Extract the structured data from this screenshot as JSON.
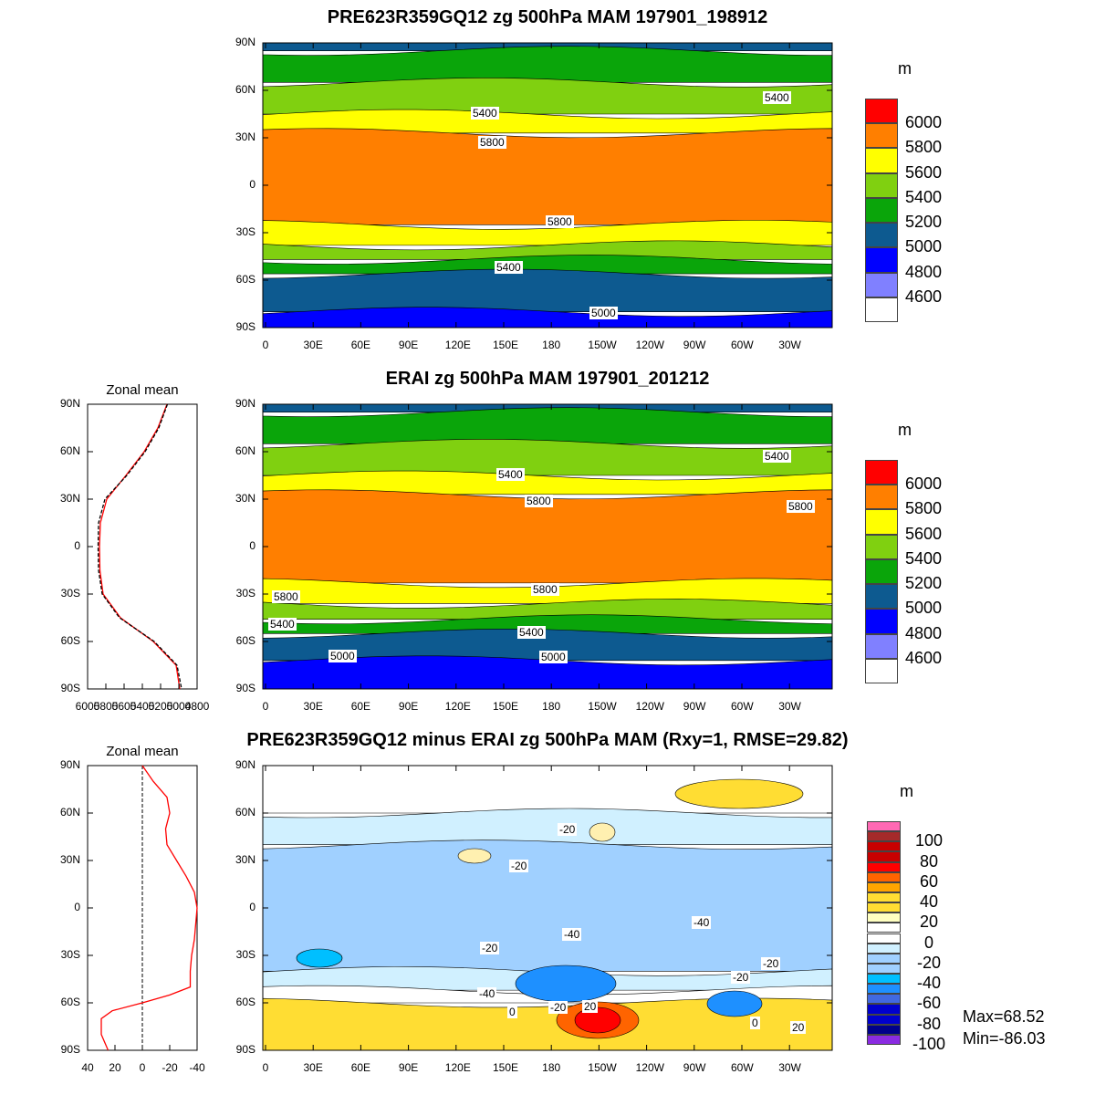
{
  "panels": [
    {
      "title": "PRE623R359GQ12 zg 500hPa MAM 197901_198912",
      "unit": "m",
      "colorbar": {
        "labels": [
          "6000",
          "5800",
          "5600",
          "5400",
          "5200",
          "5000",
          "4800",
          "4600"
        ],
        "colors": [
          "#ff0000",
          "#ff7f00",
          "#ffff00",
          "#80d010",
          "#0aa50a",
          "#0d5a90",
          "#0000ff",
          "#8080ff",
          "#ffffff"
        ]
      },
      "contour_labels": [
        "5400",
        "5400",
        "5800",
        "5800",
        "5400",
        "5000"
      ],
      "bands": [
        [
          90,
          85,
          "#0d5a90"
        ],
        [
          85,
          65,
          "#0aa50a"
        ],
        [
          65,
          45,
          "#80d010"
        ],
        [
          45,
          33,
          "#ffff00"
        ],
        [
          33,
          -25,
          "#ff7f00"
        ],
        [
          -25,
          -38,
          "#ffff00"
        ],
        [
          -38,
          -47,
          "#80d010"
        ],
        [
          -47,
          -56,
          "#0aa50a"
        ],
        [
          -56,
          -80,
          "#0d5a90"
        ],
        [
          -80,
          -90,
          "#0000ff"
        ]
      ]
    },
    {
      "title": "ERAI zg 500hPa MAM 197901_201212",
      "unit": "m",
      "colorbar": {
        "labels": [
          "6000",
          "5800",
          "5600",
          "5400",
          "5200",
          "5000",
          "4800",
          "4600"
        ],
        "colors": [
          "#ff0000",
          "#ff7f00",
          "#ffff00",
          "#80d010",
          "#0aa50a",
          "#0d5a90",
          "#0000ff",
          "#8080ff",
          "#ffffff"
        ]
      },
      "contour_labels": [
        "5400",
        "5400",
        "5800",
        "5800",
        "5800",
        "5800",
        "5400",
        "5400",
        "5000",
        "5000"
      ],
      "bands": [
        [
          90,
          85,
          "#0d5a90"
        ],
        [
          85,
          65,
          "#0aa50a"
        ],
        [
          65,
          45,
          "#80d010"
        ],
        [
          45,
          33,
          "#ffff00"
        ],
        [
          33,
          -23,
          "#ff7f00"
        ],
        [
          -23,
          -36,
          "#ffff00"
        ],
        [
          -36,
          -46,
          "#80d010"
        ],
        [
          -46,
          -55,
          "#0aa50a"
        ],
        [
          -55,
          -72,
          "#0d5a90"
        ],
        [
          -72,
          -90,
          "#0000ff"
        ]
      ],
      "zonal_mean": {
        "title": "Zonal mean",
        "xticks": [
          "6000",
          "5800",
          "5600",
          "5400",
          "5200",
          "5000",
          "4800"
        ],
        "lat": [
          90,
          75,
          60,
          45,
          30,
          15,
          0,
          -15,
          -30,
          -45,
          -60,
          -75,
          -90
        ],
        "model": [
          5130,
          5230,
          5380,
          5580,
          5790,
          5860,
          5870,
          5865,
          5830,
          5640,
          5280,
          5030,
          4990
        ],
        "obs": [
          5125,
          5220,
          5370,
          5570,
          5810,
          5880,
          5885,
          5880,
          5840,
          5650,
          5270,
          5020,
          4970
        ]
      }
    },
    {
      "title": "PRE623R359GQ12 minus ERAI zg 500hPa MAM (Rxy=1, RMSE=29.82)",
      "unit": "m",
      "colorbar": {
        "labels": [
          "100",
          "80",
          "60",
          "40",
          "20",
          "0",
          "-20",
          "-40",
          "-60",
          "-80",
          "-100"
        ],
        "colors": [
          "#ff69b4",
          "#a52a2a",
          "#c80000",
          "#c80000",
          "#ff0000",
          "#ff6400",
          "#ffa500",
          "#ffdd33",
          "#ffdd33",
          "#ffffc0",
          "#ffffff",
          "#ffffff",
          "#d0f0ff",
          "#a0d0ff",
          "#a0d0ff",
          "#00bfff",
          "#1e90ff",
          "#4169e1",
          "#0000cd",
          "#0000cd",
          "#00008b",
          "#8a2be2"
        ]
      },
      "contour_labels": [
        "-20",
        "-20",
        "-20",
        "-40",
        "-20",
        "-40",
        "-40",
        "0",
        "-20",
        "20",
        "0",
        "20",
        "-20"
      ],
      "stats": {
        "max": "Max=68.52",
        "min": "Min=-86.03"
      },
      "bands": [
        [
          90,
          60,
          "#ffffff"
        ],
        [
          60,
          40,
          "#d0f0ff"
        ],
        [
          40,
          -40,
          "#a0d0ff"
        ],
        [
          -40,
          -52,
          "#d0f0ff"
        ],
        [
          -52,
          -60,
          "#ffffff"
        ],
        [
          -60,
          -90,
          "#ffdd33"
        ]
      ],
      "zonal_mean": {
        "title": "Zonal mean",
        "xticks": [
          "40",
          "20",
          "0",
          "-20",
          "-40"
        ],
        "lat": [
          90,
          80,
          70,
          60,
          50,
          40,
          30,
          20,
          10,
          0,
          -10,
          -20,
          -30,
          -40,
          -50,
          -55,
          -60,
          -65,
          -70,
          -80,
          -90
        ],
        "diff": [
          0,
          -8,
          -18,
          -20,
          -17,
          -18,
          -25,
          -32,
          -38,
          -40,
          -39,
          -38,
          -36,
          -35,
          -35,
          -20,
          0,
          22,
          30,
          30,
          25
        ]
      }
    }
  ],
  "lon_ticks": [
    "0",
    "30E",
    "60E",
    "90E",
    "120E",
    "150E",
    "180",
    "150W",
    "120W",
    "90W",
    "60W",
    "30W"
  ],
  "lat_ticks": [
    "90N",
    "60N",
    "30N",
    "0",
    "30S",
    "60S",
    "90S"
  ]
}
